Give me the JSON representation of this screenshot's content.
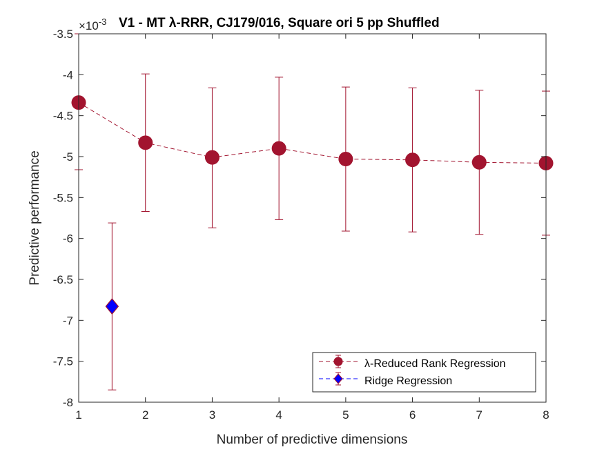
{
  "chart_data": {
    "type": "line",
    "title": "V1 - MT λ-RRR, CJ179/016, Square ori 5 pp Shuffled",
    "exponent_label": "×10",
    "exponent_power": "-3",
    "xlabel": "Number of predictive dimensions",
    "ylabel": "Predictive performance",
    "xlim": [
      1,
      8
    ],
    "ylim": [
      -8,
      -3.5
    ],
    "xticks": [
      1,
      2,
      3,
      4,
      5,
      6,
      7,
      8
    ],
    "xtick_labels": [
      "1",
      "2",
      "3",
      "4",
      "5",
      "6",
      "7",
      "8"
    ],
    "yticks": [
      -3.5,
      -4,
      -4.5,
      -5,
      -5.5,
      -6,
      -6.5,
      -7,
      -7.5,
      -8
    ],
    "ytick_labels": [
      "-3.5",
      "-4",
      "-4.5",
      "-5",
      "-5.5",
      "-6",
      "-6.5",
      "-7",
      "-7.5",
      "-8"
    ],
    "grid": false,
    "legend_position": "bottom-right",
    "series": [
      {
        "name": "λ-Reduced Rank Regression",
        "color": "#A2142F",
        "marker": "circle",
        "line_style": "dashed",
        "x": [
          1,
          2,
          3,
          4,
          5,
          6,
          7,
          8
        ],
        "y": [
          -4.34,
          -4.83,
          -5.01,
          -4.9,
          -5.03,
          -5.04,
          -5.07,
          -5.08
        ],
        "err_lower": [
          -5.16,
          -5.67,
          -5.87,
          -5.77,
          -5.91,
          -5.92,
          -5.95,
          -5.96
        ],
        "err_upper": [
          -3.5,
          -3.99,
          -4.16,
          -4.03,
          -4.15,
          -4.16,
          -4.19,
          -4.2
        ]
      },
      {
        "name": "Ridge Regression",
        "color": "#0000FF",
        "edge_color": "#A2142F",
        "marker": "diamond",
        "line_style": "dashed",
        "x": [
          1.5
        ],
        "y": [
          -6.83
        ],
        "err_lower": [
          -7.85
        ],
        "err_upper": [
          -5.81
        ]
      }
    ]
  }
}
